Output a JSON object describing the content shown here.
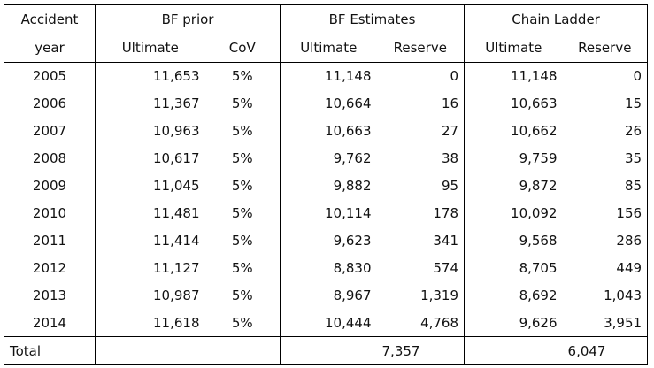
{
  "header": {
    "row1": [
      "Accident",
      "BF prior",
      "BF Estimates",
      "Chain Ladder"
    ],
    "row2": [
      "year",
      "Ultimate",
      "CoV",
      "Ultimate",
      "Reserve",
      "Ultimate",
      "Reserve"
    ]
  },
  "rows": [
    {
      "year": "2005",
      "bf_prior_ultimate": "11,653",
      "cov": "5%",
      "bf_ultimate": "11,148",
      "bf_reserve": "0",
      "cl_ultimate": "11,148",
      "cl_reserve": "0"
    },
    {
      "year": "2006",
      "bf_prior_ultimate": "11,367",
      "cov": "5%",
      "bf_ultimate": "10,664",
      "bf_reserve": "16",
      "cl_ultimate": "10,663",
      "cl_reserve": "15"
    },
    {
      "year": "2007",
      "bf_prior_ultimate": "10,963",
      "cov": "5%",
      "bf_ultimate": "10,663",
      "bf_reserve": "27",
      "cl_ultimate": "10,662",
      "cl_reserve": "26"
    },
    {
      "year": "2008",
      "bf_prior_ultimate": "10,617",
      "cov": "5%",
      "bf_ultimate": "9,762",
      "bf_reserve": "38",
      "cl_ultimate": "9,759",
      "cl_reserve": "35"
    },
    {
      "year": "2009",
      "bf_prior_ultimate": "11,045",
      "cov": "5%",
      "bf_ultimate": "9,882",
      "bf_reserve": "95",
      "cl_ultimate": "9,872",
      "cl_reserve": "85"
    },
    {
      "year": "2010",
      "bf_prior_ultimate": "11,481",
      "cov": "5%",
      "bf_ultimate": "10,114",
      "bf_reserve": "178",
      "cl_ultimate": "10,092",
      "cl_reserve": "156"
    },
    {
      "year": "2011",
      "bf_prior_ultimate": "11,414",
      "cov": "5%",
      "bf_ultimate": "9,623",
      "bf_reserve": "341",
      "cl_ultimate": "9,568",
      "cl_reserve": "286"
    },
    {
      "year": "2012",
      "bf_prior_ultimate": "11,127",
      "cov": "5%",
      "bf_ultimate": "8,830",
      "bf_reserve": "574",
      "cl_ultimate": "8,705",
      "cl_reserve": "449"
    },
    {
      "year": "2013",
      "bf_prior_ultimate": "10,987",
      "cov": "5%",
      "bf_ultimate": "8,967",
      "bf_reserve": "1,319",
      "cl_ultimate": "8,692",
      "cl_reserve": "1,043"
    },
    {
      "year": "2014",
      "bf_prior_ultimate": "11,618",
      "cov": "5%",
      "bf_ultimate": "10,444",
      "bf_reserve": "4,768",
      "cl_ultimate": "9,626",
      "cl_reserve": "3,951"
    }
  ],
  "total": {
    "label": "Total",
    "bf_reserve": "7,357",
    "cl_reserve": "6,047"
  }
}
